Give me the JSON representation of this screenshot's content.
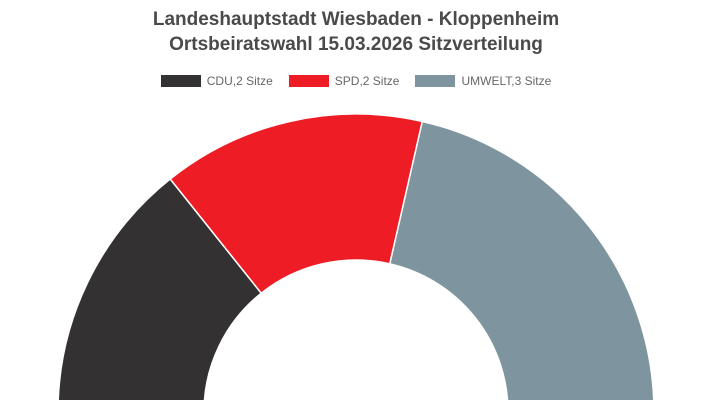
{
  "chart_data": {
    "type": "pie",
    "title": "Landeshauptstadt Wiesbaden - Kloppenheim",
    "subtitle": "Ortsbeiratswahl 15.03.2026 Sitzverteilung",
    "legend_position": "top",
    "series": [
      {
        "name": "CDU,2 Sitze",
        "value": 2,
        "color": "#333132"
      },
      {
        "name": "SPD,2 Sitze",
        "value": 2,
        "color": "#ee1c25"
      },
      {
        "name": "UMWELT,3 Sitze",
        "value": 3,
        "color": "#7e95a0"
      }
    ]
  }
}
